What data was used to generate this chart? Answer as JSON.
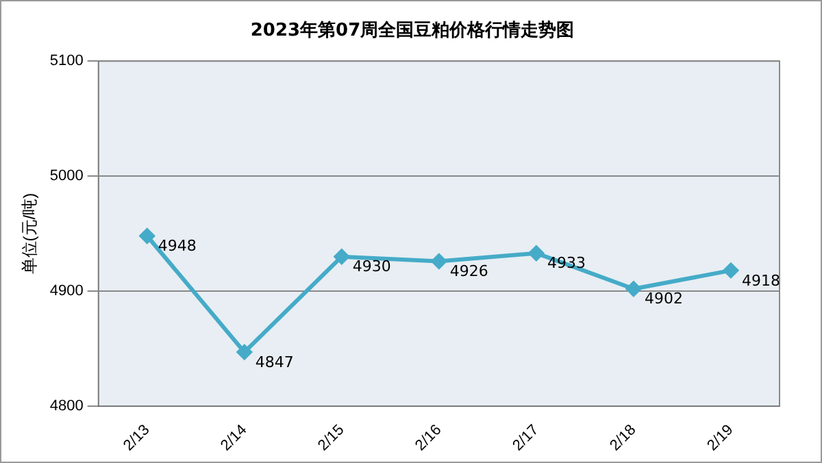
{
  "chart_data": {
    "type": "line",
    "title": "2023年第07周全国豆粕价格行情走势图",
    "ylabel": "单位(元/吨)",
    "categories": [
      "2/13",
      "2/14",
      "2/15",
      "2/16",
      "2/17",
      "2/18",
      "2/19"
    ],
    "series": [
      {
        "color": "#45abc8",
        "values": [
          4948,
          4847,
          4930,
          4926,
          4933,
          4902,
          4918
        ]
      }
    ],
    "ylim": [
      4800,
      5100
    ],
    "yticks": [
      4800,
      4900,
      5000,
      5100
    ],
    "grid": "y",
    "legend": false,
    "marker": "diamond",
    "data_labels": true
  }
}
